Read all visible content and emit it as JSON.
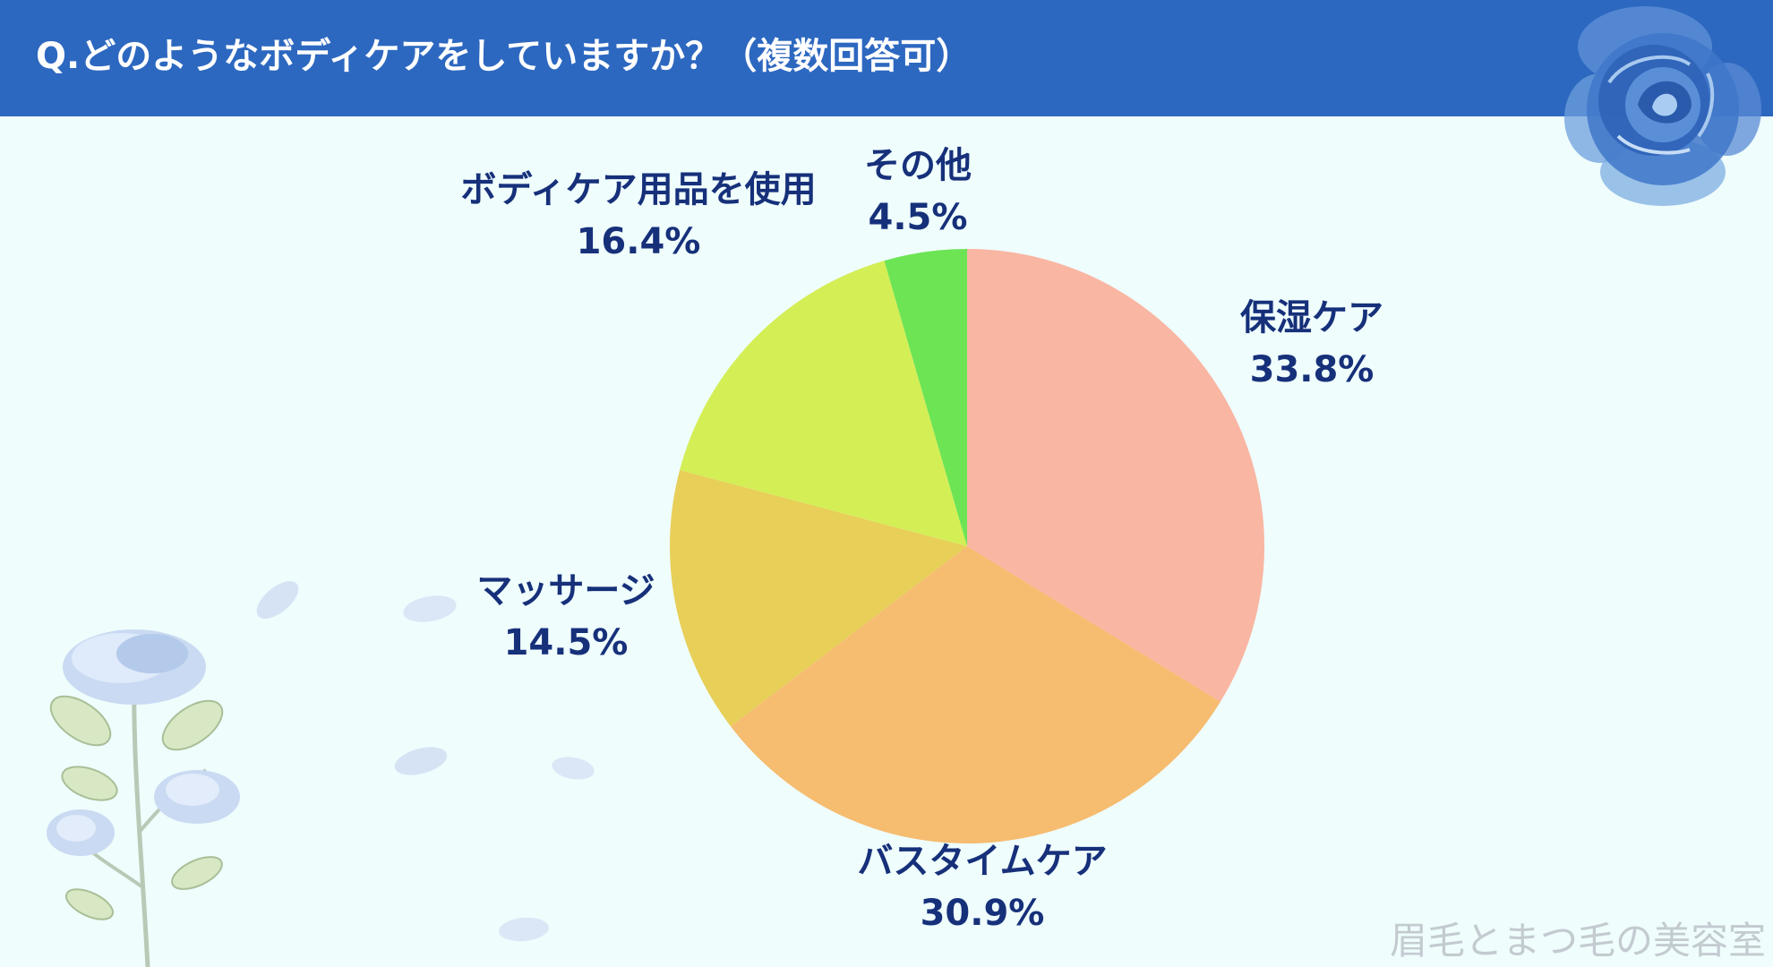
{
  "header": {
    "title": "Q.どのようなボディケアをしていますか？（複数回答可）"
  },
  "colors": {
    "header_bg": "#2d68c0",
    "background": "#effdfd",
    "label_text": "#16307a",
    "slices": [
      "#f9b6a2",
      "#f6bc70",
      "#e8cf58",
      "#d4ee56",
      "#6de454"
    ]
  },
  "chart_data": {
    "type": "pie",
    "start": "12 o'clock, clockwise",
    "slices": [
      {
        "label": "保湿ケア",
        "value": 33.8,
        "value_label": "33.8%",
        "color": "#f9b6a2"
      },
      {
        "label": "バスタイムケア",
        "value": 30.9,
        "value_label": "30.9%",
        "color": "#f6bc70"
      },
      {
        "label": "マッサージ",
        "value": 14.5,
        "value_label": "14.5%",
        "color": "#e8cf58"
      },
      {
        "label": "ボディケア用品を使用",
        "value": 16.4,
        "value_label": "16.4%",
        "color": "#d4ee56"
      },
      {
        "label": "その他",
        "value": 4.5,
        "value_label": "4.5%",
        "color": "#6de454"
      }
    ]
  },
  "watermark": "眉毛とまつ毛の美容室",
  "decorations": [
    "rose-icon",
    "flower-stem-icon",
    "petal-icon"
  ]
}
